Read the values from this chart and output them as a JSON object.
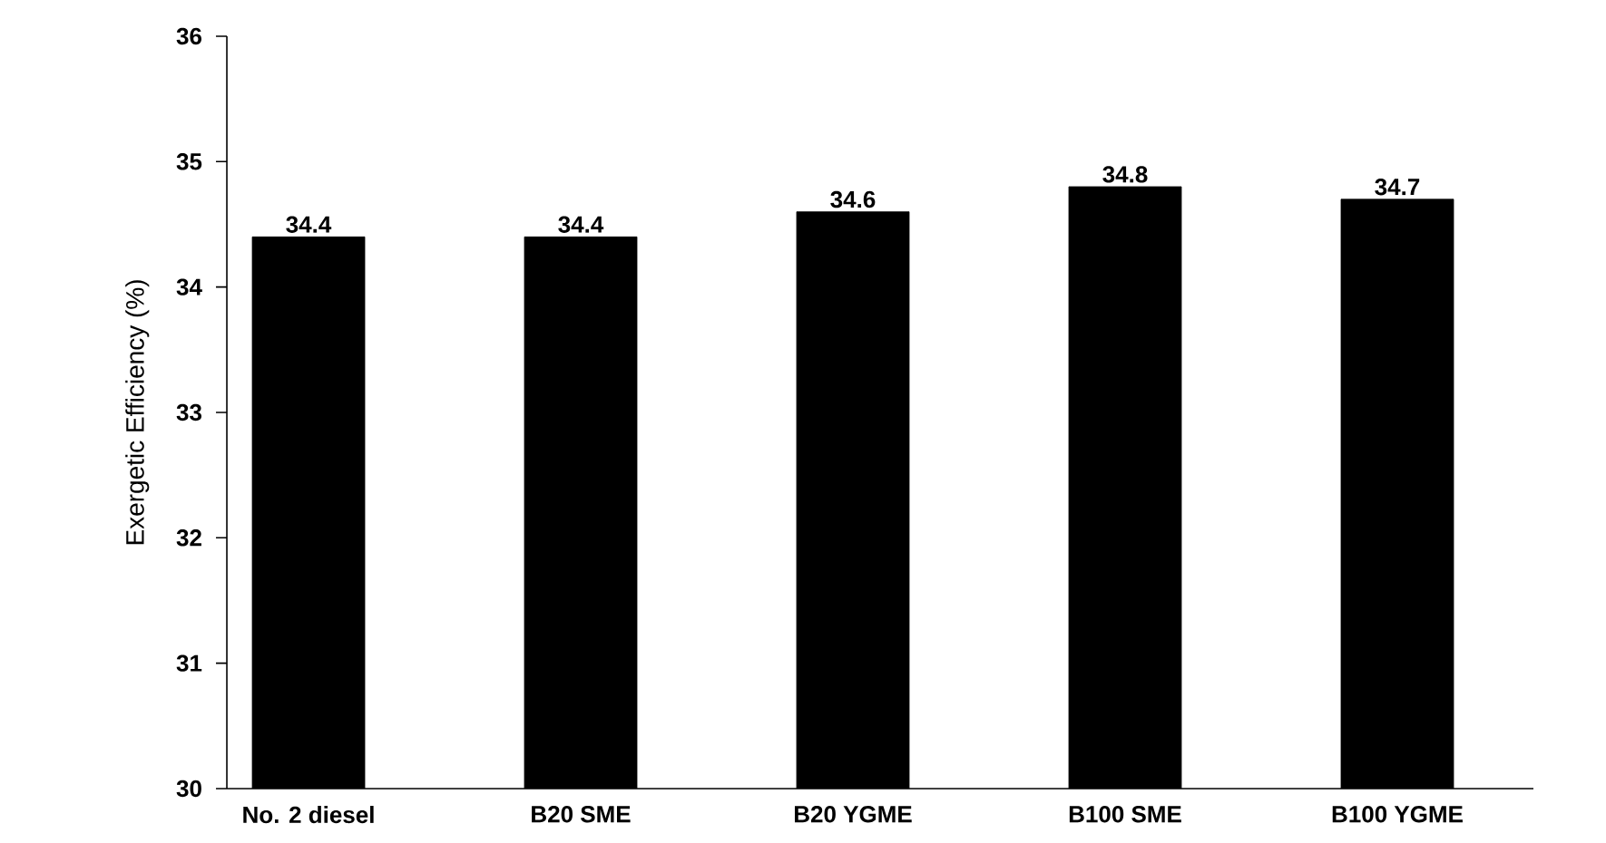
{
  "chart_data": {
    "type": "bar",
    "ylabel": "Exergetic Efficiency (%)",
    "categories": [
      "No. 2 diesel",
      "B20 SME",
      "B20 YGME",
      "B100 SME",
      "B100 YGME"
    ],
    "values": [
      34.4,
      34.4,
      34.6,
      34.8,
      34.7
    ],
    "value_labels": [
      "34.4",
      "34.4",
      "34.6",
      "34.8",
      "34.7"
    ],
    "color": "#000000",
    "ylim": [
      30,
      36
    ],
    "yticks": [
      30,
      31,
      32,
      33,
      34,
      35,
      36
    ]
  }
}
